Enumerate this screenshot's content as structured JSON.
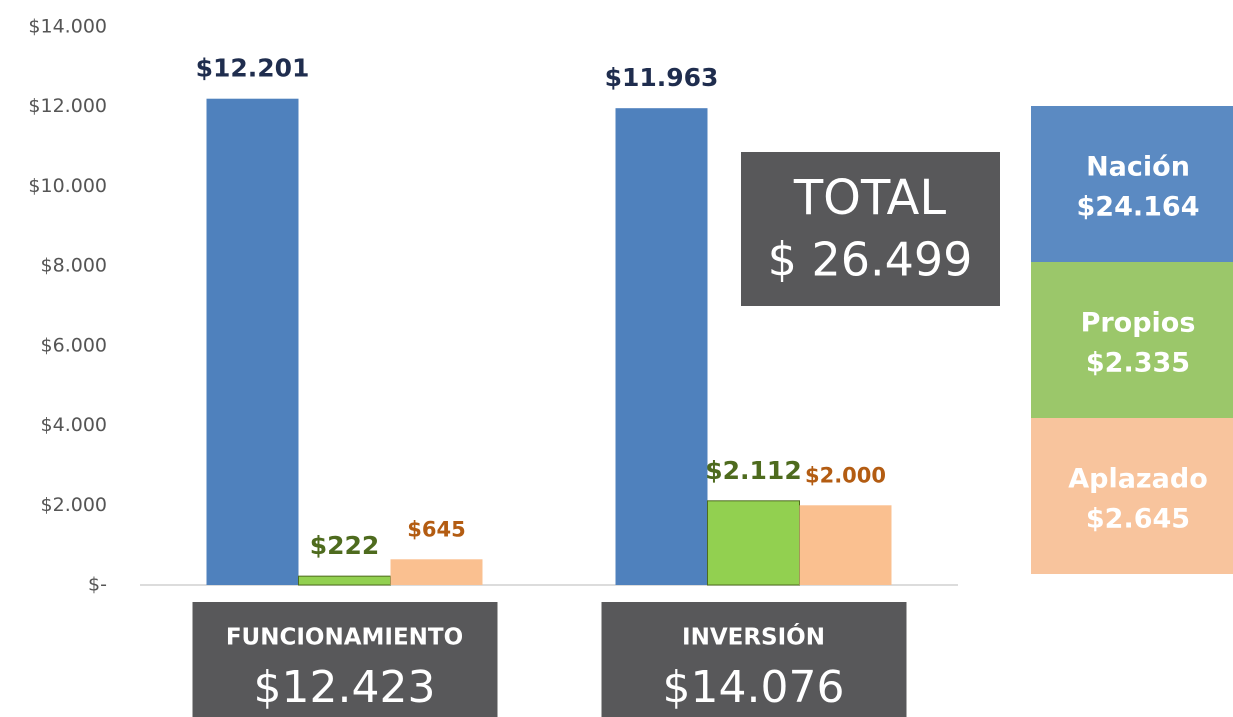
{
  "chart_data": {
    "type": "bar",
    "categories": [
      "FUNCIONAMIENTO",
      "INVERSIÓN"
    ],
    "category_totals": [
      12423,
      14076
    ],
    "category_total_labels": [
      "$12.423",
      "$14.076"
    ],
    "series": [
      {
        "name": "Nación",
        "color": "#4f81bd",
        "label_color": "#1f2d4e",
        "values": [
          12201,
          11963
        ],
        "value_labels": [
          "$12.201",
          "$11.963"
        ],
        "total": 24164,
        "total_label": "$24.164",
        "legend_color": "#5b8ac2"
      },
      {
        "name": "Propios",
        "color": "#92d050",
        "label_color": "#4e6b1e",
        "values": [
          222,
          2112
        ],
        "value_labels": [
          "$222",
          "$2.112"
        ],
        "total": 2335,
        "total_label": "$2.335",
        "legend_color": "#9bc76a"
      },
      {
        "name": "Aplazado",
        "color": "#fac090",
        "label_color": "#b35c12",
        "values": [
          645,
          2000
        ],
        "value_labels": [
          "$645",
          "$2.000"
        ],
        "total": 2645,
        "total_label": "$2.645",
        "legend_color": "#f8c49d"
      }
    ],
    "total": {
      "label": "TOTAL",
      "value": 26499,
      "value_label": "$ 26.499"
    },
    "ylim": [
      0,
      14000
    ],
    "yticks": [
      {
        "value": 0,
        "label": "$-"
      },
      {
        "value": 2000,
        "label": "$2.000"
      },
      {
        "value": 4000,
        "label": "$4.000"
      },
      {
        "value": 6000,
        "label": "$6.000"
      },
      {
        "value": 8000,
        "label": "$8.000"
      },
      {
        "value": 10000,
        "label": "$10.000"
      },
      {
        "value": 12000,
        "label": "$12.000"
      },
      {
        "value": 14000,
        "label": "$14.000"
      }
    ]
  }
}
